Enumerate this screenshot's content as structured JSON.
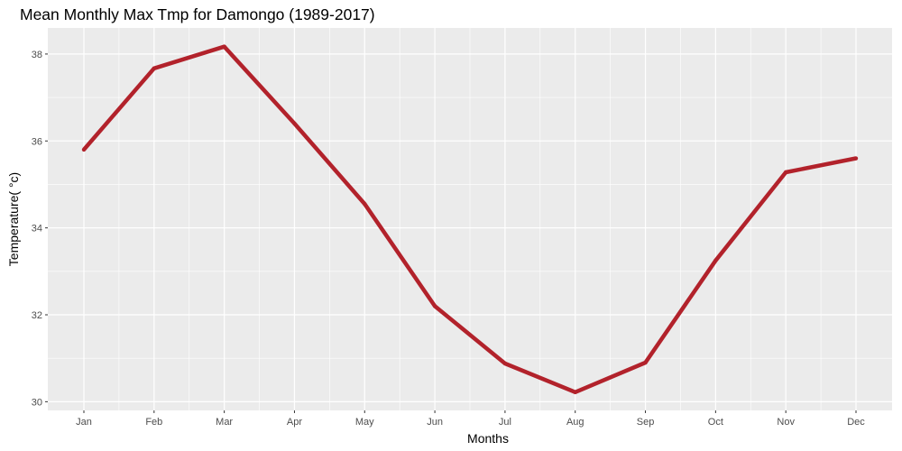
{
  "chart_data": {
    "type": "line",
    "title": "Mean Monthly Max Tmp for Damongo (1989-2017)",
    "xlabel": "Months",
    "ylabel": "Temperature( °c)",
    "categories": [
      "Jan",
      "Feb",
      "Mar",
      "Apr",
      "May",
      "Jun",
      "Jul",
      "Aug",
      "Sep",
      "Oct",
      "Nov",
      "Dec"
    ],
    "series": [
      {
        "values": [
          35.8,
          37.67,
          38.17,
          36.4,
          34.55,
          32.2,
          30.88,
          30.22,
          30.9,
          33.25,
          35.28,
          35.6
        ],
        "color": "#b2222b"
      }
    ],
    "ylim": [
      29.8,
      38.6
    ],
    "y_ticks": [
      30,
      32,
      34,
      36,
      38
    ],
    "grid": true,
    "panel_background": "#ebebeb",
    "grid_color": "#ffffff"
  }
}
